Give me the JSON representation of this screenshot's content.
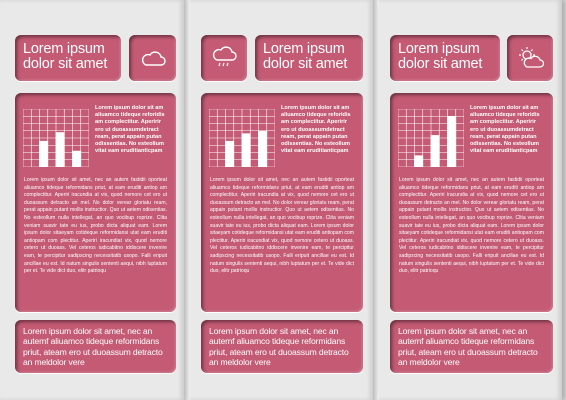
{
  "title": "Lorem ipsum dolor sit amet",
  "columns": [
    {
      "icon": "cloud-icon",
      "bars": [
        0.45,
        0.6,
        0.28
      ]
    },
    {
      "icon": "cloud-rain-icon",
      "bars": [
        0.45,
        0.58,
        0.62
      ]
    },
    {
      "icon": "sun-cloud-icon",
      "bars": [
        0.2,
        0.55,
        0.88
      ]
    }
  ],
  "side_text": "Lorem ipsum dolor sit am aliuamco tideque reforidis am complectitur. Aperirir ero ut duoassumdetract ream, perat appain putan odissentias. No esteollum vitat eam eruditianticpam",
  "body_text": "Lorem ipsum dolor sit amet, nec an autem fastidii oporteat aliuamco tideque reformidans priut, at eam eruditi antiop am complectitur. Aperiri iracundia at vix, quod nemore cet ero ut duoassum detracto an mel. No dolor verear gloriatu ream, perat appain putant mollis instructior. Quo ut aetem odisentias. No esteollum nulla intellegat, an quo vocibup roprize. Clita veniam suavir tate eu ius, probo dicta aliquat eam. Lorem ipsum dolor sitaeyam cotideque reformidansi utat eam eruditi antiopam com plectitur. Aperiri iracundiat vix, quod nemore cetero ut duoass. Vel ceteros iudicabitno iddiscere invenire eam, te percipitur sadipscing necessitatib usopo. Falli eripuit ancillae eu est. Id natum singulis sententi aequi, nibh luptatum per et. Te vide dict duo, elitr patrioqu",
  "bottom_text": "Lorem ipsum dolor sit amet, nec an autemf aliuamco tideque reformidans priut, ateam ero ut duoassum detracto an meldolor vere"
}
